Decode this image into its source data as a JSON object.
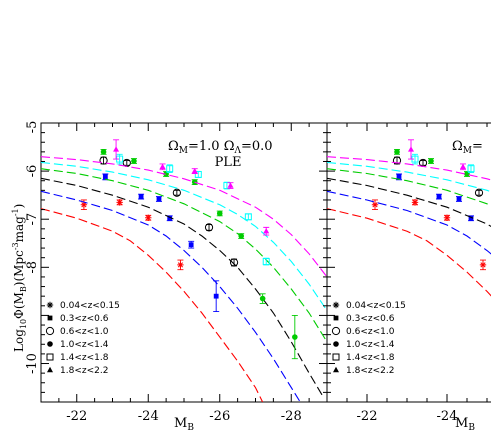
{
  "chart_data": [
    {
      "type": "line",
      "panel": "left",
      "xlabel": "M",
      "xlabel_sub": "B",
      "ylabel": "Log₁₀Φ(M_B)(Mpc⁻³mag⁻¹)",
      "ylabel_parts": [
        "Log",
        "10",
        "Φ(M",
        "B",
        ")(Mpc",
        "-3",
        "mag",
        "-1",
        ")"
      ],
      "xlim": [
        -21,
        -29
      ],
      "ylim": [
        -10.8,
        -5
      ],
      "xticks": [
        -22,
        -24,
        -26,
        -28
      ],
      "yticks": [
        -6,
        -7,
        -8,
        -10
      ],
      "ytick_labels": [
        "-6",
        "-7",
        "-8",
        "-10"
      ],
      "extra_top_tick": "-5",
      "annotation_line1": "Ω_M=1.0  Ω_Λ=0.0",
      "annotation_parts": [
        "Ω",
        "M",
        "=1.0  ",
        "Ω",
        "Λ",
        "=0.0"
      ],
      "annotation_line2": "PLE",
      "legend": [
        {
          "label": "0.04<z<0.15",
          "marker": "asterisk",
          "color": "#000000"
        },
        {
          "label": "0.3<z<0.6",
          "marker": "filled-square",
          "color": "#000000"
        },
        {
          "label": "0.6<z<1.0",
          "marker": "open-circle",
          "color": "#000000"
        },
        {
          "label": "1.0<z<1.4",
          "marker": "filled-circle",
          "color": "#000000"
        },
        {
          "label": "1.4<z<1.8",
          "marker": "open-square",
          "color": "#000000"
        },
        {
          "label": "1.8<z<2.2",
          "marker": "filled-triangle",
          "color": "#000000"
        }
      ],
      "series": [
        {
          "color": "#ff0000",
          "marker": "asterisk",
          "model": [
            [
              -21,
              -6.78
            ],
            [
              -22,
              -6.98
            ],
            [
              -23,
              -7.25
            ],
            [
              -23.5,
              -7.45
            ],
            [
              -24,
              -7.75
            ],
            [
              -24.5,
              -8.1
            ],
            [
              -25,
              -8.5
            ],
            [
              -25.5,
              -8.95
            ],
            [
              -26,
              -9.45
            ],
            [
              -26.5,
              -9.95
            ],
            [
              -27,
              -10.5
            ],
            [
              -27.2,
              -10.8
            ]
          ],
          "points": [
            [
              -22.2,
              -6.7,
              0.1
            ],
            [
              -23.2,
              -6.65,
              0.05
            ],
            [
              -24.0,
              -6.97,
              0.05
            ],
            [
              -24.9,
              -7.95,
              0.1
            ]
          ]
        },
        {
          "color": "#0000ff",
          "marker": "filled-square",
          "model": [
            [
              -21,
              -6.42
            ],
            [
              -22,
              -6.6
            ],
            [
              -23,
              -6.82
            ],
            [
              -24,
              -7.12
            ],
            [
              -24.5,
              -7.35
            ],
            [
              -25,
              -7.65
            ],
            [
              -25.5,
              -8.0
            ],
            [
              -26,
              -8.4
            ],
            [
              -26.5,
              -8.85
            ],
            [
              -27,
              -9.35
            ],
            [
              -27.5,
              -9.9
            ],
            [
              -28,
              -10.5
            ],
            [
              -28.25,
              -10.8
            ]
          ],
          "points": [
            [
              -22.8,
              -6.12,
              0.06
            ],
            [
              -23.8,
              -6.53,
              0.05
            ],
            [
              -24.3,
              -6.58,
              0.05
            ],
            [
              -24.6,
              -6.98,
              0.05
            ],
            [
              -25.2,
              -7.53,
              0.07
            ],
            [
              -25.9,
              -8.6,
              0.32
            ]
          ]
        },
        {
          "color": "#000000",
          "marker": "open-circle",
          "model": [
            [
              -21,
              -6.15
            ],
            [
              -22,
              -6.3
            ],
            [
              -23,
              -6.5
            ],
            [
              -24,
              -6.75
            ],
            [
              -25,
              -7.1
            ],
            [
              -25.5,
              -7.35
            ],
            [
              -26,
              -7.65
            ],
            [
              -26.5,
              -8.0
            ],
            [
              -27,
              -8.45
            ],
            [
              -27.5,
              -8.95
            ],
            [
              -28,
              -9.55
            ],
            [
              -28.5,
              -10.2
            ],
            [
              -28.9,
              -10.7
            ]
          ],
          "points": [
            [
              -22.75,
              -5.78,
              0.07
            ],
            [
              -23.4,
              -5.83,
              0.05
            ],
            [
              -24.8,
              -6.45,
              0.05
            ],
            [
              -25.7,
              -7.17,
              0.06
            ],
            [
              -26.4,
              -7.9,
              0.07
            ]
          ]
        },
        {
          "color": "#00cc00",
          "marker": "filled-circle",
          "model": [
            [
              -21,
              -5.95
            ],
            [
              -22,
              -6.05
            ],
            [
              -23,
              -6.2
            ],
            [
              -24,
              -6.4
            ],
            [
              -25,
              -6.68
            ],
            [
              -26,
              -7.05
            ],
            [
              -26.5,
              -7.3
            ],
            [
              -27,
              -7.62
            ],
            [
              -27.5,
              -8.0
            ],
            [
              -28,
              -8.45
            ],
            [
              -28.5,
              -8.95
            ],
            [
              -29,
              -9.55
            ]
          ],
          "points": [
            [
              -22.75,
              -5.6,
              0.05
            ],
            [
              -23.6,
              -5.79,
              0.05
            ],
            [
              -24.5,
              -6.06,
              0.05
            ],
            [
              -25.3,
              -6.23,
              0.05
            ],
            [
              -26.0,
              -6.88,
              0.05
            ],
            [
              -26.6,
              -7.35,
              0.05
            ],
            [
              -27.2,
              -8.65,
              0.1
            ],
            [
              -28.1,
              -9.45,
              0.45
            ]
          ]
        },
        {
          "color": "#00ffff",
          "marker": "open-square",
          "model": [
            [
              -21,
              -5.82
            ],
            [
              -22,
              -5.9
            ],
            [
              -23,
              -6.02
            ],
            [
              -24,
              -6.18
            ],
            [
              -25,
              -6.4
            ],
            [
              -26,
              -6.7
            ],
            [
              -26.5,
              -6.9
            ],
            [
              -27,
              -7.15
            ],
            [
              -27.5,
              -7.48
            ],
            [
              -28,
              -7.88
            ],
            [
              -28.5,
              -8.35
            ],
            [
              -29,
              -8.9
            ]
          ],
          "points": [
            [
              -23.2,
              -5.75,
              0.1
            ],
            [
              -24.6,
              -5.95,
              0.08
            ],
            [
              -25.4,
              -6.07,
              0.06
            ],
            [
              -26.2,
              -6.3,
              0.07
            ],
            [
              -26.8,
              -6.95,
              0.06
            ],
            [
              -27.3,
              -7.88,
              0.07
            ]
          ]
        },
        {
          "color": "#ff00ff",
          "marker": "filled-triangle",
          "model": [
            [
              -21,
              -5.7
            ],
            [
              -22,
              -5.76
            ],
            [
              -23,
              -5.85
            ],
            [
              -24,
              -5.98
            ],
            [
              -25,
              -6.16
            ],
            [
              -26,
              -6.4
            ],
            [
              -27,
              -6.75
            ],
            [
              -27.5,
              -7.0
            ],
            [
              -28,
              -7.32
            ],
            [
              -28.5,
              -7.72
            ],
            [
              -29,
              -8.2
            ]
          ],
          "points": [
            [
              -23.1,
              -5.55,
              0.2
            ],
            [
              -24.4,
              -5.91,
              0.06
            ],
            [
              -25.3,
              -6.0,
              0.05
            ],
            [
              -26.3,
              -6.3,
              0.06
            ],
            [
              -27.3,
              -7.25,
              0.08
            ]
          ]
        }
      ]
    },
    {
      "type": "line",
      "panel": "right",
      "xlabel": "M",
      "xlabel_sub": "B",
      "xlim": [
        -21,
        -25.1
      ],
      "ylim": [
        -10.8,
        -5
      ],
      "xticks": [
        -22,
        -24
      ],
      "annotation_parts": [
        "Ω",
        "M",
        "="
      ],
      "legend": [
        {
          "label": "0.04<z<0.15",
          "marker": "asterisk"
        },
        {
          "label": "0.3<z<0.6",
          "marker": "filled-square"
        },
        {
          "label": "0.6<z<1.0",
          "marker": "open-circle"
        },
        {
          "label": "1.0<z<1.4",
          "marker": "filled-circle"
        },
        {
          "label": "1.4<z<1.8",
          "marker": "open-square"
        },
        {
          "label": "1.8<z<2.2",
          "marker": "filled-triangle"
        }
      ]
    }
  ]
}
